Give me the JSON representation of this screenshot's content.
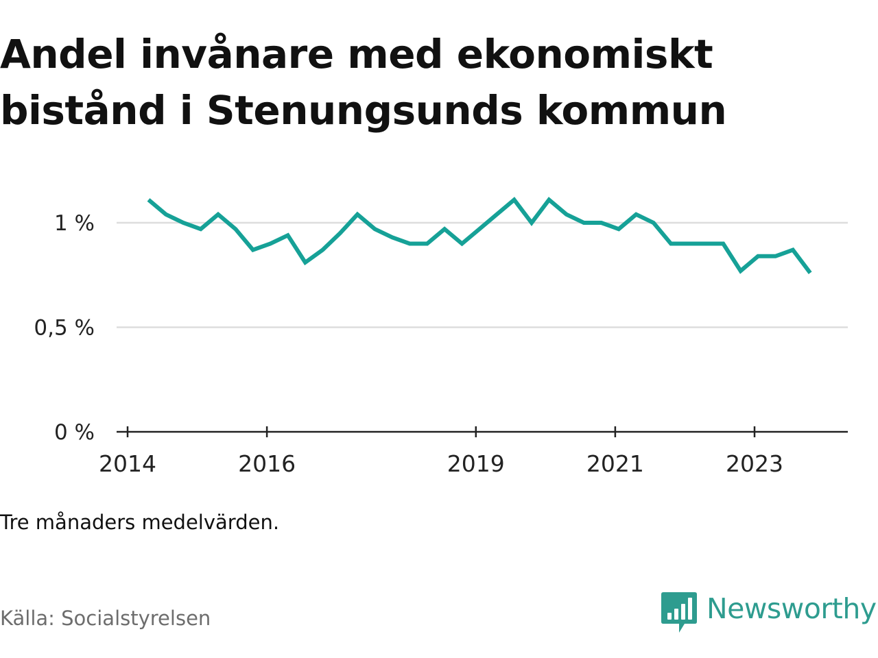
{
  "title": "Andel invånare med ekonomiskt bistånd i Stenungsunds kommun",
  "note": "Tre månaders medelvärden.",
  "source": "Källa: Socialstyrelsen",
  "brand": {
    "name": "Newsworthy",
    "logo_icon": "bar-chart-speech-bubble-icon",
    "color": "#2e9c8f"
  },
  "chart_data": {
    "type": "line",
    "title": "Andel invånare med ekonomiskt bistånd i Stenungsunds kommun",
    "xlabel": "",
    "ylabel": "",
    "xlim": [
      2014,
      2024.4
    ],
    "ylim": [
      0,
      1.2
    ],
    "x_ticks": [
      {
        "value": 2014,
        "label": "2014"
      },
      {
        "value": 2016,
        "label": "2016"
      },
      {
        "value": 2019,
        "label": "2019"
      },
      {
        "value": 2021,
        "label": "2021"
      },
      {
        "value": 2023,
        "label": "2023"
      }
    ],
    "y_ticks": [
      {
        "value": 0,
        "label": "0 %"
      },
      {
        "value": 0.5,
        "label": "0,5 %"
      },
      {
        "value": 1,
        "label": "1 %"
      }
    ],
    "grid": true,
    "legend": "none",
    "line_color": "#16a197",
    "series": [
      {
        "x": [
          2014.3,
          2014.55,
          2014.8,
          2015.05,
          2015.3,
          2015.55,
          2015.8,
          2016.05,
          2016.3,
          2016.55,
          2016.8,
          2017.05,
          2017.3,
          2017.55,
          2017.8,
          2018.05,
          2018.3,
          2018.55,
          2018.8,
          2019.05,
          2019.3,
          2019.55,
          2019.8,
          2020.05,
          2020.3,
          2020.55,
          2020.8,
          2021.05,
          2021.3,
          2021.55,
          2021.8,
          2022.05,
          2022.3,
          2022.55,
          2022.8,
          2023.05,
          2023.3,
          2023.55,
          2023.8
        ],
        "values": [
          1.11,
          1.04,
          1.0,
          0.97,
          1.04,
          0.97,
          0.87,
          0.9,
          0.94,
          0.81,
          0.87,
          0.95,
          1.04,
          0.97,
          0.93,
          0.9,
          0.9,
          0.97,
          0.9,
          0.97,
          1.04,
          1.11,
          1.0,
          1.11,
          1.04,
          1.0,
          1.0,
          0.97,
          1.04,
          1.0,
          0.9,
          0.9,
          0.9,
          0.9,
          0.77,
          0.84,
          0.84,
          0.87,
          0.76
        ]
      }
    ]
  }
}
